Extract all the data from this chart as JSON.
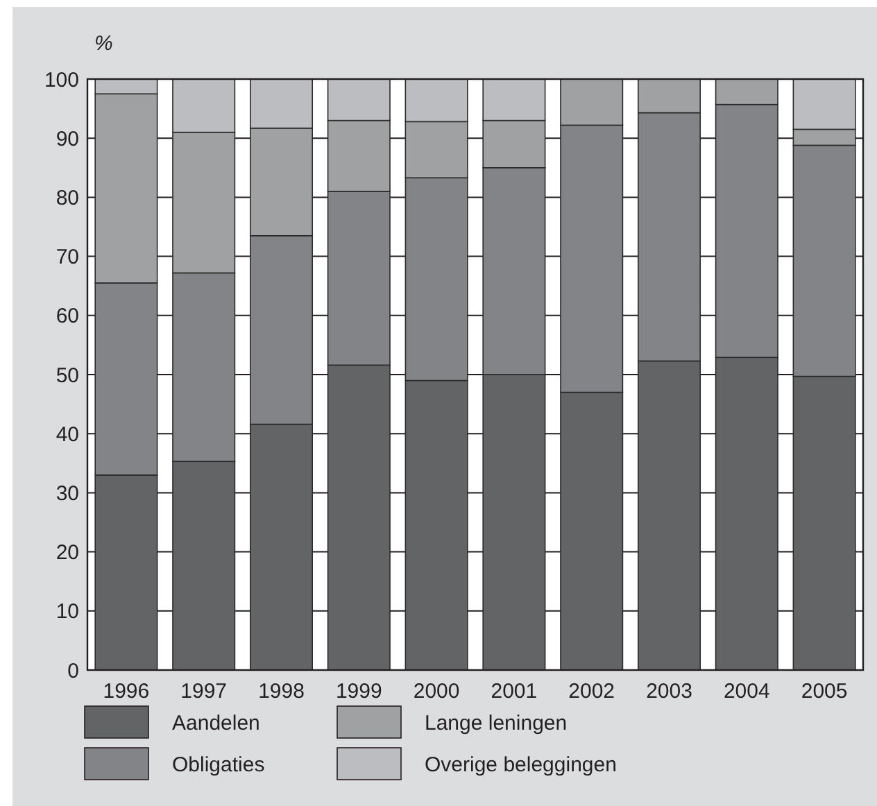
{
  "chart_data": {
    "type": "bar",
    "ylabel": "%",
    "categories": [
      "1996",
      "1997",
      "1998",
      "1999",
      "2000",
      "2001",
      "2002",
      "2003",
      "2004",
      "2005"
    ],
    "stacked": true,
    "ylim": [
      0,
      100
    ],
    "yticks": [
      0,
      10,
      20,
      30,
      40,
      50,
      60,
      70,
      80,
      90,
      100
    ],
    "grid": "y",
    "legend": "bottom",
    "series": [
      {
        "name": "Aandelen",
        "color": "#636466",
        "values": [
          33,
          35.3,
          41.6,
          51.6,
          49,
          50,
          47,
          52.3,
          52.9,
          49.7
        ]
      },
      {
        "name": "Obligaties",
        "color": "#838487",
        "values": [
          32.5,
          31.9,
          31.9,
          29.4,
          34.3,
          35,
          45.2,
          42,
          42.8,
          39.1
        ]
      },
      {
        "name": "Lange leningen",
        "color": "#a0a1a3",
        "values": [
          32,
          23.8,
          18.2,
          12,
          9.5,
          8,
          7.8,
          5.7,
          4.3,
          2.7
        ]
      },
      {
        "name": "Overige beleggingen",
        "color": "#bcbdc0",
        "values": [
          2.5,
          9,
          8.3,
          7,
          7.2,
          7,
          0,
          0,
          0,
          8.5
        ]
      }
    ]
  }
}
